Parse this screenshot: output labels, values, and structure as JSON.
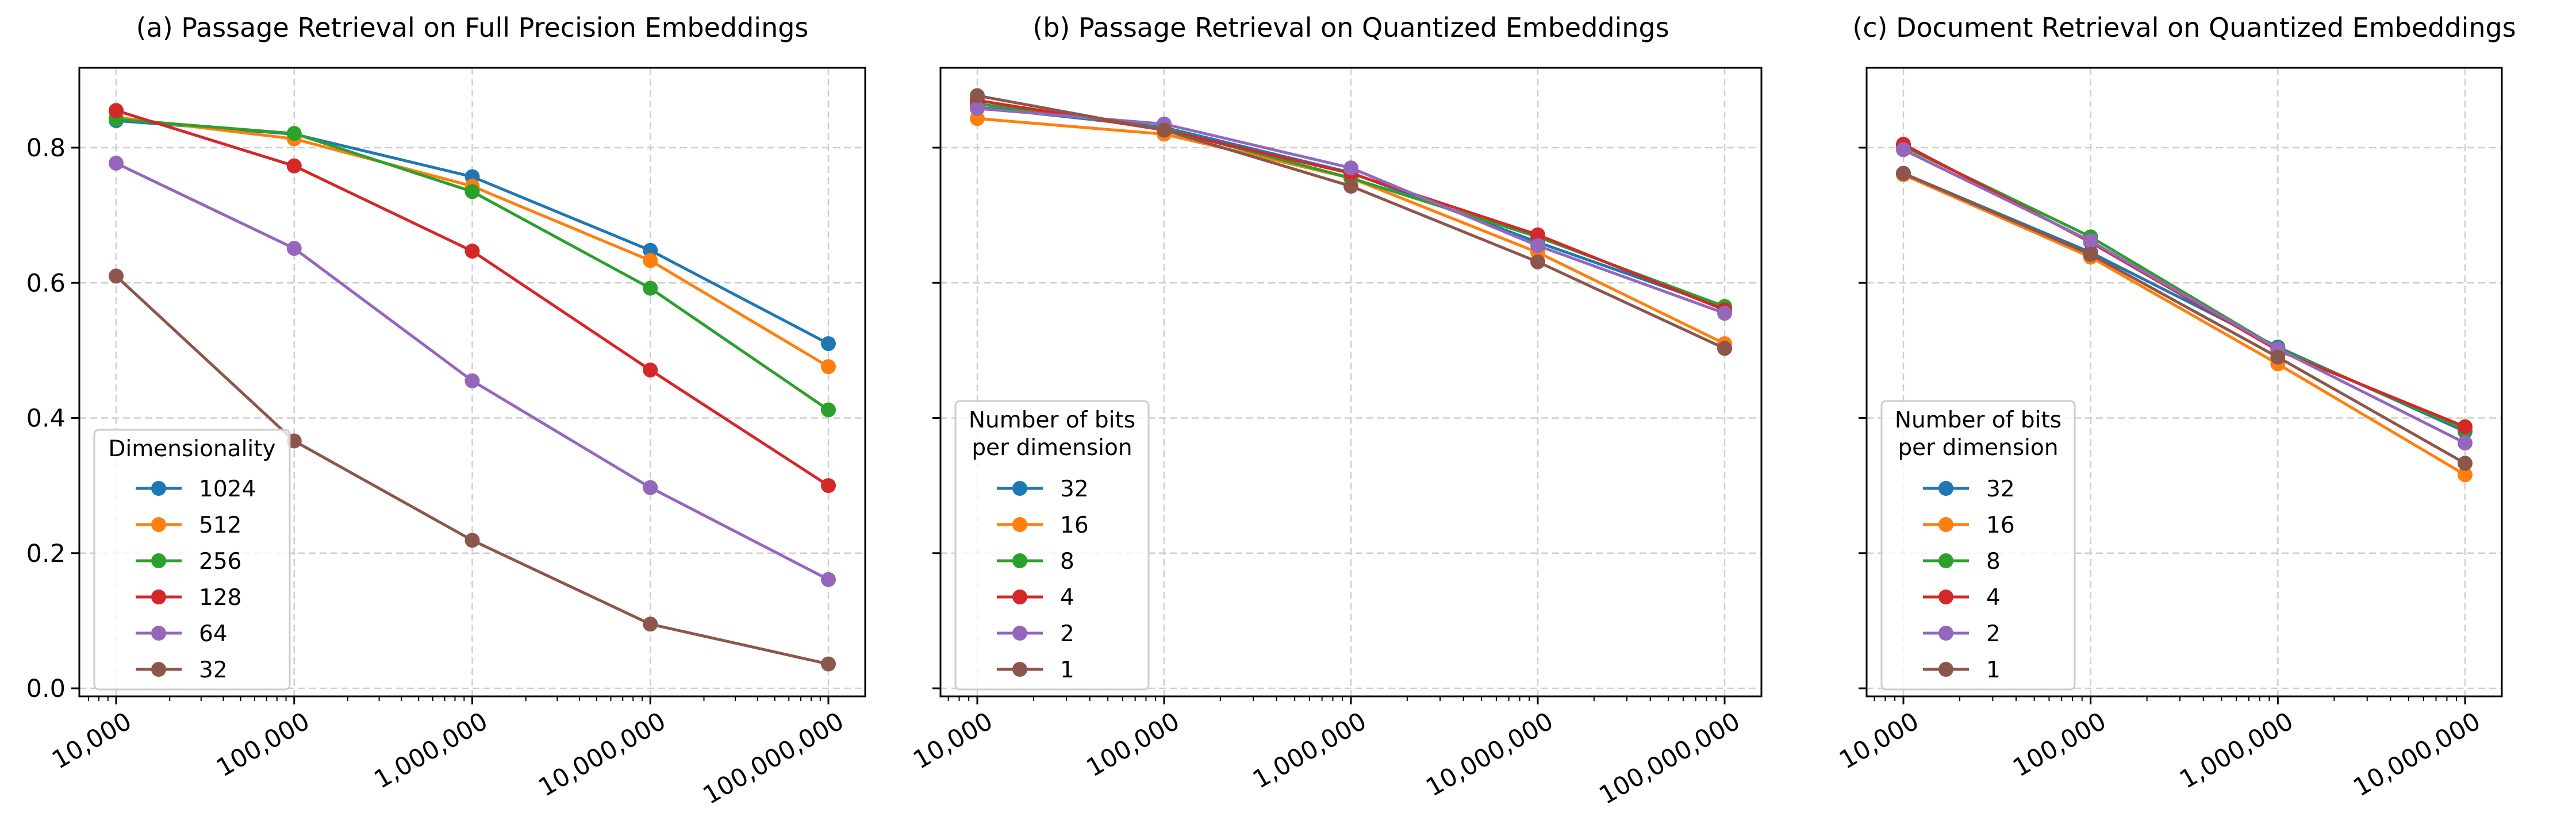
{
  "colors": {
    "blue": "#1f77b4",
    "orange": "#ff7f0e",
    "green": "#2ca02c",
    "red": "#d62728",
    "purple": "#9467bd",
    "brown": "#8c564b"
  },
  "chart_data": [
    {
      "type": "line",
      "title": "(a) Passage Retrieval on Full Precision Embeddings",
      "xscale": "log",
      "x": [
        10000,
        100000,
        1000000,
        10000000,
        100000000
      ],
      "x_tick_labels": [
        "10,000",
        "100,000",
        "1,000,000",
        "10,000,000",
        "100,000,000"
      ],
      "ylim": [
        0.0,
        0.92
      ],
      "y_ticks": [
        0.0,
        0.2,
        0.4,
        0.6,
        0.8
      ],
      "y_tick_labels": [
        "0.0",
        "0.2",
        "0.4",
        "0.6",
        "0.8"
      ],
      "grid": true,
      "legend": {
        "title": "Dimensionality",
        "placement": "lower-left"
      },
      "series": [
        {
          "name": "1024",
          "color": "#1f77b4",
          "values": [
            0.84,
            0.82,
            0.757,
            0.648,
            0.51
          ]
        },
        {
          "name": "512",
          "color": "#ff7f0e",
          "values": [
            0.845,
            0.813,
            0.743,
            0.633,
            0.476
          ]
        },
        {
          "name": "256",
          "color": "#2ca02c",
          "values": [
            0.842,
            0.821,
            0.735,
            0.592,
            0.412
          ]
        },
        {
          "name": "128",
          "color": "#d62728",
          "values": [
            0.855,
            0.773,
            0.647,
            0.471,
            0.3
          ]
        },
        {
          "name": "64",
          "color": "#9467bd",
          "values": [
            0.777,
            0.651,
            0.455,
            0.297,
            0.161
          ]
        },
        {
          "name": "32",
          "color": "#8c564b",
          "values": [
            0.61,
            0.366,
            0.219,
            0.095,
            0.036
          ]
        }
      ]
    },
    {
      "type": "line",
      "title": "(b) Passage Retrieval on Quantized Embeddings",
      "xscale": "log",
      "x": [
        10000,
        100000,
        1000000,
        10000000,
        100000000
      ],
      "x_tick_labels": [
        "10,000",
        "100,000",
        "1,000,000",
        "10,000,000",
        "100,000,000"
      ],
      "ylim": [
        0.0,
        0.92
      ],
      "y_ticks": [
        0.0,
        0.2,
        0.4,
        0.6,
        0.8
      ],
      "grid": true,
      "legend": {
        "title": "Number of bits\nper dimension",
        "placement": "lower-left"
      },
      "series": [
        {
          "name": "32",
          "color": "#1f77b4",
          "values": [
            0.86,
            0.83,
            0.763,
            0.66,
            0.563
          ]
        },
        {
          "name": "16",
          "color": "#ff7f0e",
          "values": [
            0.843,
            0.82,
            0.755,
            0.645,
            0.51
          ]
        },
        {
          "name": "8",
          "color": "#2ca02c",
          "values": [
            0.865,
            0.828,
            0.755,
            0.668,
            0.565
          ]
        },
        {
          "name": "4",
          "color": "#d62728",
          "values": [
            0.87,
            0.826,
            0.762,
            0.671,
            0.56
          ]
        },
        {
          "name": "2",
          "color": "#9467bd",
          "values": [
            0.858,
            0.835,
            0.77,
            0.655,
            0.555
          ]
        },
        {
          "name": "1",
          "color": "#8c564b",
          "values": [
            0.877,
            0.826,
            0.743,
            0.631,
            0.503
          ]
        }
      ]
    },
    {
      "type": "line",
      "title": "(c) Document Retrieval on Quantized Embeddings",
      "xscale": "log",
      "x": [
        10000,
        100000,
        1000000,
        10000000
      ],
      "x_tick_labels": [
        "10,000",
        "100,000",
        "1,000,000",
        "10,000,000"
      ],
      "ylim": [
        0.0,
        0.92
      ],
      "y_ticks": [
        0.0,
        0.2,
        0.4,
        0.6,
        0.8
      ],
      "grid": true,
      "legend": {
        "title": "Number of bits\nper dimension",
        "placement": "lower-left"
      },
      "series": [
        {
          "name": "32",
          "color": "#1f77b4",
          "values": [
            0.762,
            0.645,
            0.505,
            0.38
          ]
        },
        {
          "name": "16",
          "color": "#ff7f0e",
          "values": [
            0.76,
            0.638,
            0.48,
            0.316
          ]
        },
        {
          "name": "8",
          "color": "#2ca02c",
          "values": [
            0.802,
            0.668,
            0.503,
            0.383
          ]
        },
        {
          "name": "4",
          "color": "#d62728",
          "values": [
            0.805,
            0.66,
            0.5,
            0.387
          ]
        },
        {
          "name": "2",
          "color": "#9467bd",
          "values": [
            0.797,
            0.662,
            0.502,
            0.363
          ]
        },
        {
          "name": "1",
          "color": "#8c564b",
          "values": [
            0.762,
            0.642,
            0.49,
            0.333
          ]
        }
      ]
    }
  ]
}
